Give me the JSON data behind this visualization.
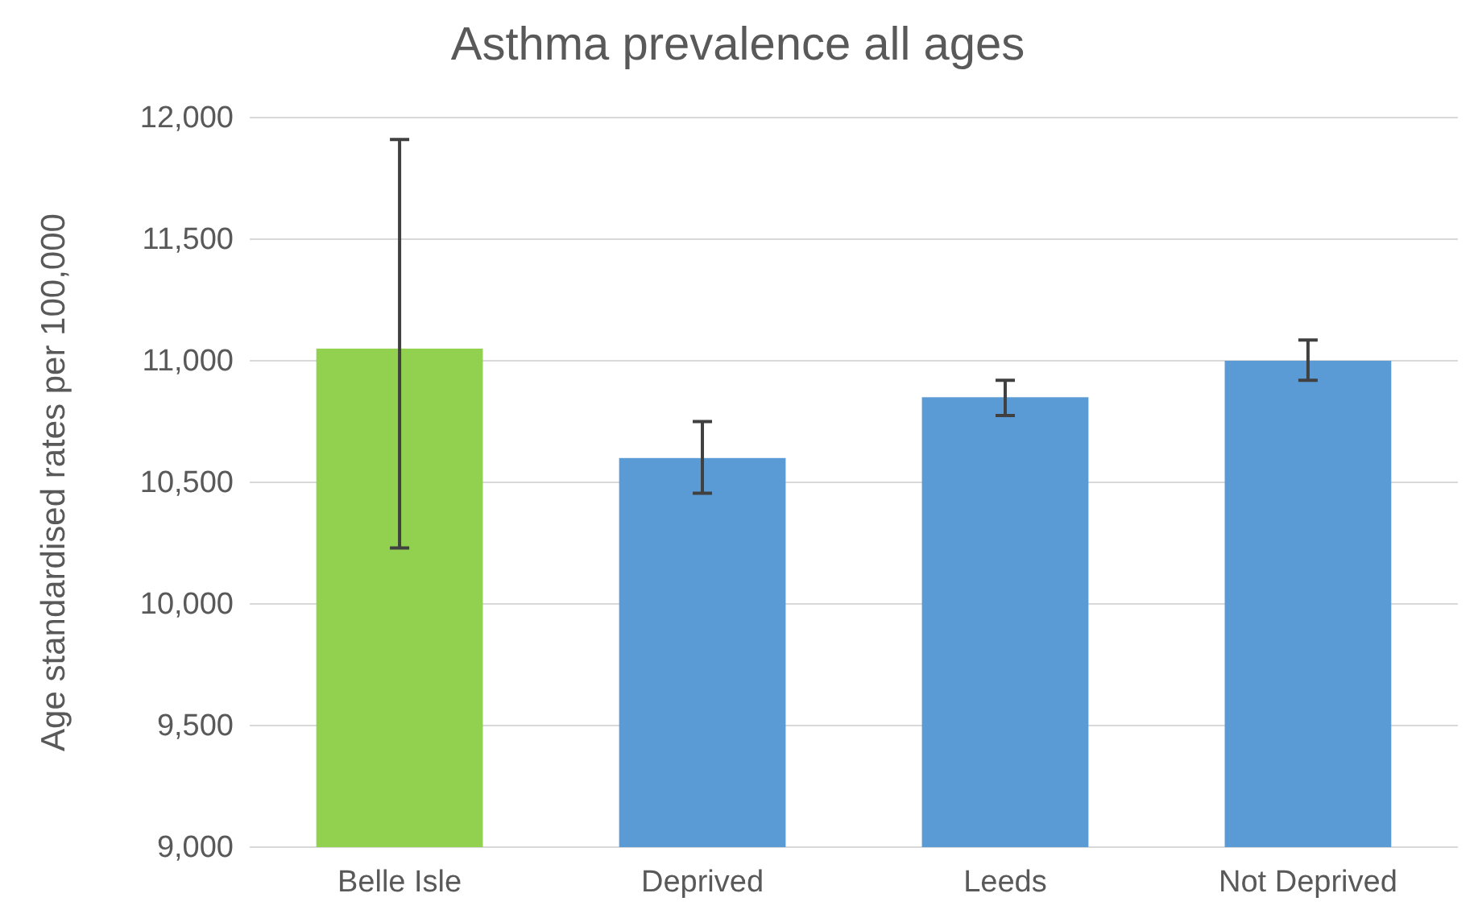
{
  "chart_data": {
    "type": "bar",
    "title": "Asthma prevalence all ages",
    "ylabel": "Age standardised rates per 100,000",
    "categories": [
      "Belle Isle",
      "Deprived",
      "Leeds",
      "Not Deprived"
    ],
    "values": [
      11050,
      10600,
      10850,
      11000
    ],
    "colors": [
      "#92d050",
      "#5b9bd5",
      "#5b9bd5",
      "#5b9bd5"
    ],
    "errors": [
      [
        10230,
        11910
      ],
      [
        10455,
        10750
      ],
      [
        10775,
        10920
      ],
      [
        10920,
        11085
      ]
    ],
    "ylim": [
      9000,
      12000
    ],
    "yticks": [
      {
        "value": 9000,
        "label": "9,000"
      },
      {
        "value": 9500,
        "label": "9,500"
      },
      {
        "value": 10000,
        "label": "10,000"
      },
      {
        "value": 10500,
        "label": "10,500"
      },
      {
        "value": 11000,
        "label": "11,000"
      },
      {
        "value": 11500,
        "label": "11,500"
      },
      {
        "value": 12000,
        "label": "12,000"
      }
    ],
    "grid": "y"
  }
}
